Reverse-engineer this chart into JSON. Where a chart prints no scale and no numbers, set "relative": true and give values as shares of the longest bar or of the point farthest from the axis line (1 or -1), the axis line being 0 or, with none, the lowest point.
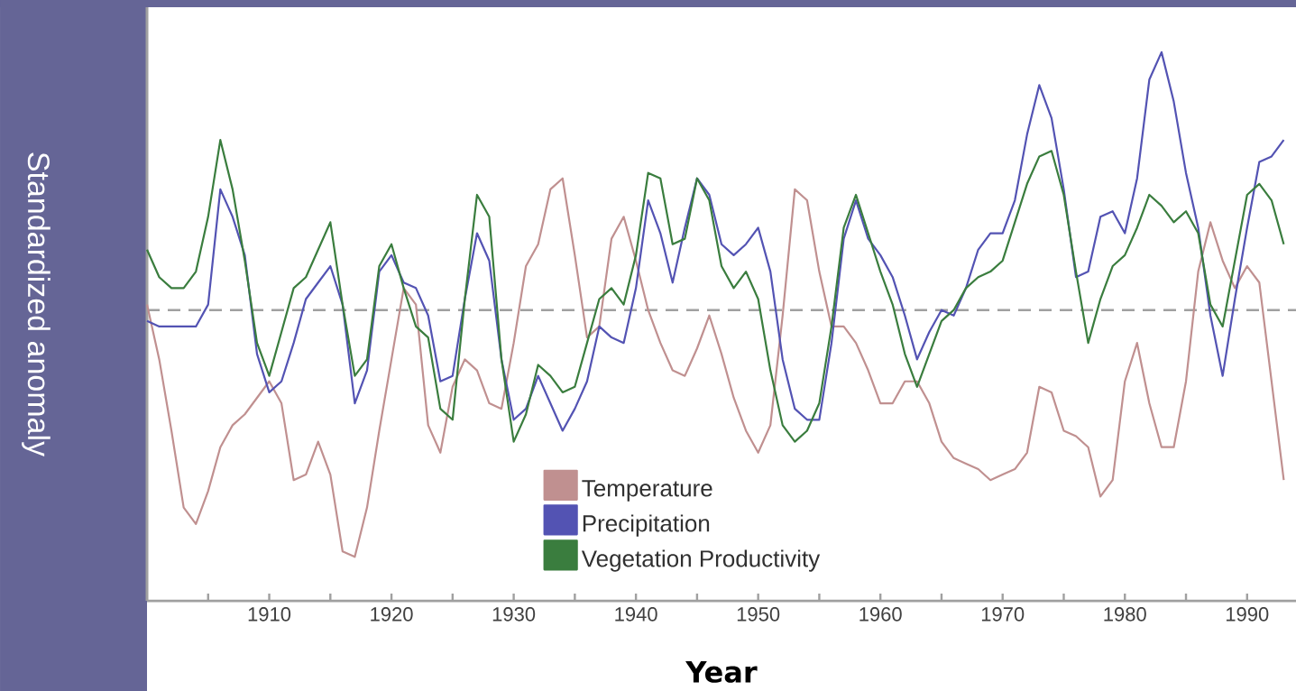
{
  "chart_data": {
    "type": "line",
    "relative": true,
    "xlabel": "Year",
    "ylabel": "Standardized anomaly",
    "x": [
      1900,
      1901,
      1902,
      1903,
      1904,
      1905,
      1906,
      1907,
      1908,
      1909,
      1910,
      1911,
      1912,
      1913,
      1914,
      1915,
      1916,
      1917,
      1918,
      1919,
      1920,
      1921,
      1922,
      1923,
      1924,
      1925,
      1926,
      1927,
      1928,
      1929,
      1930,
      1931,
      1932,
      1933,
      1934,
      1935,
      1936,
      1937,
      1938,
      1939,
      1940,
      1941,
      1942,
      1943,
      1944,
      1945,
      1946,
      1947,
      1948,
      1949,
      1950,
      1951,
      1952,
      1953,
      1954,
      1955,
      1956,
      1957,
      1958,
      1959,
      1960,
      1961,
      1962,
      1963,
      1964,
      1965,
      1966,
      1967,
      1968,
      1969,
      1970,
      1971,
      1972,
      1973,
      1974,
      1975,
      1976,
      1977,
      1978,
      1979,
      1980,
      1981,
      1982,
      1983,
      1984,
      1985,
      1986,
      1987,
      1988,
      1989,
      1990,
      1991,
      1992,
      1993
    ],
    "xlim": [
      1900,
      1994
    ],
    "xticks": [
      {
        "value": 1905,
        "label": null
      },
      1910,
      {
        "value": 1915,
        "label": null
      },
      1920,
      {
        "value": 1925,
        "label": null
      },
      1930,
      {
        "value": 1935,
        "label": null
      },
      1940,
      {
        "value": 1945,
        "label": null
      },
      1950,
      {
        "value": 1955,
        "label": null
      },
      1960,
      {
        "value": 1965,
        "label": null
      },
      1970,
      {
        "value": 1975,
        "label": null
      },
      1980,
      {
        "value": 1985,
        "label": null
      },
      1990
    ],
    "tick_labels": "x",
    "marker": "none",
    "legend": "bottom",
    "ref_lines": [
      {
        "axis": "y",
        "value": 0.53,
        "color": "#a0a0a0",
        "line_style": "dashed"
      }
    ],
    "series": [
      {
        "name": "Temperature",
        "color": "#c09090",
        "values": [
          0.54,
          0.44,
          0.31,
          0.17,
          0.14,
          0.2,
          0.28,
          0.32,
          0.34,
          0.37,
          0.4,
          0.36,
          0.22,
          0.23,
          0.29,
          0.23,
          0.09,
          0.08,
          0.17,
          0.31,
          0.44,
          0.57,
          0.54,
          0.32,
          0.27,
          0.39,
          0.44,
          0.42,
          0.36,
          0.35,
          0.47,
          0.61,
          0.65,
          0.75,
          0.77,
          0.63,
          0.48,
          0.5,
          0.66,
          0.7,
          0.62,
          0.53,
          0.47,
          0.42,
          0.41,
          0.46,
          0.52,
          0.45,
          0.37,
          0.31,
          0.27,
          0.32,
          0.52,
          0.75,
          0.73,
          0.6,
          0.5,
          0.5,
          0.47,
          0.42,
          0.36,
          0.36,
          0.4,
          0.4,
          0.36,
          0.29,
          0.26,
          0.25,
          0.24,
          0.22,
          0.23,
          0.24,
          0.27,
          0.39,
          0.38,
          0.31,
          0.3,
          0.28,
          0.19,
          0.22,
          0.4,
          0.47,
          0.36,
          0.28,
          0.28,
          0.4,
          0.6,
          0.69,
          0.62,
          0.57,
          0.61,
          0.58,
          0.4,
          0.22
        ]
      },
      {
        "name": "Precipitation",
        "color": "#5353b3",
        "values": [
          0.51,
          0.5,
          0.5,
          0.5,
          0.5,
          0.54,
          0.75,
          0.7,
          0.63,
          0.45,
          0.38,
          0.4,
          0.47,
          0.55,
          0.58,
          0.61,
          0.54,
          0.36,
          0.42,
          0.6,
          0.63,
          0.58,
          0.57,
          0.52,
          0.4,
          0.41,
          0.55,
          0.67,
          0.62,
          0.44,
          0.33,
          0.35,
          0.41,
          0.36,
          0.31,
          0.35,
          0.4,
          0.5,
          0.48,
          0.47,
          0.57,
          0.73,
          0.67,
          0.58,
          0.68,
          0.77,
          0.74,
          0.65,
          0.63,
          0.65,
          0.68,
          0.6,
          0.44,
          0.35,
          0.33,
          0.33,
          0.47,
          0.66,
          0.73,
          0.66,
          0.63,
          0.59,
          0.52,
          0.44,
          0.49,
          0.53,
          0.52,
          0.57,
          0.64,
          0.67,
          0.67,
          0.73,
          0.85,
          0.94,
          0.88,
          0.75,
          0.59,
          0.6,
          0.7,
          0.71,
          0.67,
          0.77,
          0.95,
          1,
          0.91,
          0.78,
          0.68,
          0.52,
          0.41,
          0.55,
          0.68,
          0.8,
          0.81,
          0.84
        ]
      },
      {
        "name": "Vegetation Productivity",
        "color": "#3a7d3e",
        "values": [
          0.64,
          0.59,
          0.57,
          0.57,
          0.6,
          0.7,
          0.84,
          0.75,
          0.62,
          0.47,
          0.41,
          0.49,
          0.57,
          0.59,
          0.64,
          0.69,
          0.54,
          0.41,
          0.44,
          0.61,
          0.65,
          0.57,
          0.5,
          0.48,
          0.35,
          0.33,
          0.55,
          0.74,
          0.7,
          0.44,
          0.29,
          0.34,
          0.43,
          0.41,
          0.38,
          0.39,
          0.47,
          0.55,
          0.57,
          0.54,
          0.63,
          0.78,
          0.77,
          0.65,
          0.66,
          0.77,
          0.73,
          0.61,
          0.57,
          0.6,
          0.55,
          0.42,
          0.32,
          0.29,
          0.31,
          0.36,
          0.5,
          0.68,
          0.74,
          0.67,
          0.6,
          0.54,
          0.45,
          0.39,
          0.45,
          0.51,
          0.53,
          0.57,
          0.59,
          0.6,
          0.62,
          0.69,
          0.76,
          0.81,
          0.82,
          0.74,
          0.6,
          0.47,
          0.55,
          0.61,
          0.63,
          0.68,
          0.74,
          0.72,
          0.69,
          0.71,
          0.67,
          0.54,
          0.5,
          0.62,
          0.74,
          0.76,
          0.73,
          0.65
        ]
      }
    ]
  }
}
